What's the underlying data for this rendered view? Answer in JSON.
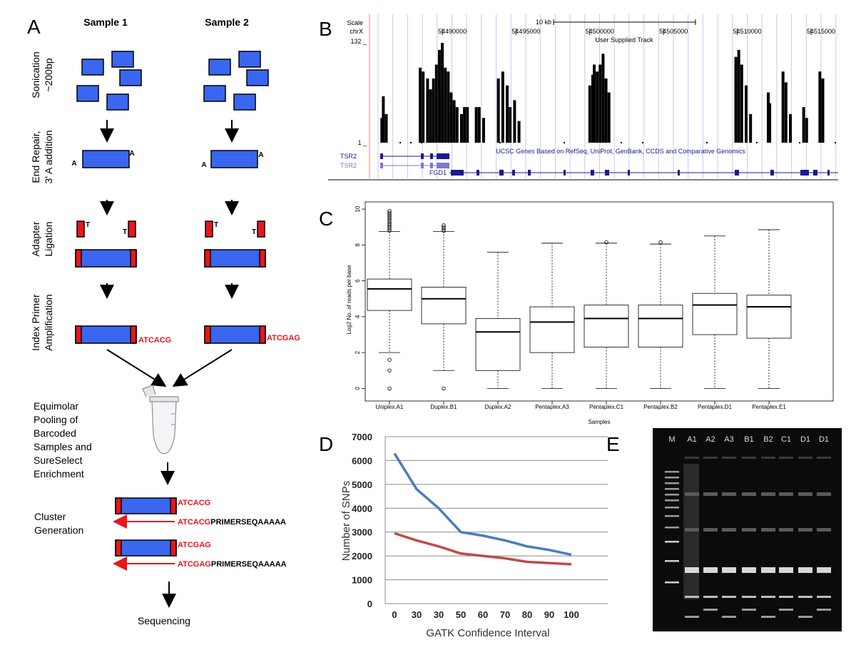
{
  "panel_a": {
    "label": "A",
    "samples": [
      "Sample 1",
      "Sample 2"
    ],
    "steps": [
      [
        "Sonication",
        "~200bp"
      ],
      [
        "End Repair,",
        "3' A addition"
      ],
      [
        "Adapter",
        "Ligation"
      ],
      [
        "Index Primer",
        "Amplification"
      ]
    ],
    "a_overhang": "A",
    "t_overhang": "T",
    "barcodes": [
      "ATCACG",
      "ATCGAG"
    ],
    "pooling": [
      "Equimolar",
      "Pooling of",
      "Barcoded",
      "Samples and",
      "SureSelect",
      "Enrichment"
    ],
    "cluster": [
      "Cluster",
      "Generation"
    ],
    "primer_suffix": "PRIMERSEQAAAAA",
    "final": "Sequencing"
  },
  "chart_data": [
    {
      "type": "coverage",
      "panel_label": "B",
      "scale_label": "Scale",
      "scale_bar": "10 kb",
      "chromosome": "chrX",
      "track_name": "User Supplied Track",
      "genes_track": "UCSC Genes Based on RefSeq, UniProt, GenBank, CCDS and Comparative Genomics",
      "genes": [
        "TSR2",
        "TSR2",
        "FGD1"
      ],
      "color": "#000000",
      "xlim": [
        54485160,
        54516840
      ],
      "xticks": [
        54490000,
        54495000,
        54500000,
        54505000,
        54510000,
        54515000
      ],
      "ylim": [
        1,
        132
      ],
      "yticks": [
        {
          "value": 132,
          "label": "132 _"
        },
        {
          "value": 1,
          "label": "1 _"
        }
      ],
      "x": [
        54485900,
        54486000,
        54486200,
        54488500,
        54488700,
        54489000,
        54489200,
        54489400,
        54489600,
        54489800,
        54490000,
        54490200,
        54490400,
        54490600,
        54490800,
        54491000,
        54491300,
        54491500,
        54491700,
        54492300,
        54492500,
        54492800,
        54493800,
        54494100,
        54494400,
        54494600,
        54494900,
        54495200,
        54500000,
        54500200,
        54500300,
        54500500,
        54500700,
        54500900,
        54501100,
        54501300,
        54509900,
        54510100,
        54510300,
        54510600,
        54510900,
        54512100,
        54512200,
        54513100,
        54513300,
        54513600,
        54514500,
        54514700,
        54515600,
        54515800
      ],
      "values": [
        33,
        61,
        38,
        98,
        93,
        84,
        70,
        84,
        102,
        121,
        130,
        98,
        93,
        66,
        56,
        47,
        38,
        47,
        47,
        47,
        47,
        33,
        84,
        93,
        75,
        47,
        56,
        29,
        75,
        89,
        102,
        93,
        102,
        116,
        84,
        66,
        112,
        121,
        102,
        75,
        38,
        66,
        52,
        93,
        79,
        38,
        47,
        33,
        93,
        84
      ]
    },
    {
      "type": "boxplot",
      "panel_label": "C",
      "y_label": "Log2 No. of reads per base",
      "x_label": "Samples",
      "categories": [
        "Uniplex.A1",
        "Duplex.B1",
        "Duplex.A2",
        "Pentaplex.A3",
        "Pentaplex.C1",
        "Pentaplex.B2",
        "Pentaplex.D1",
        "Pentaplex.E1"
      ],
      "whisker_low": [
        2.0,
        1.0,
        0,
        0,
        0,
        0,
        0,
        0
      ],
      "q1": [
        4.35,
        3.6,
        1.0,
        2.0,
        2.3,
        2.3,
        3.0,
        2.8
      ],
      "median": [
        5.55,
        5.0,
        3.15,
        3.7,
        3.9,
        3.9,
        4.65,
        4.55
      ],
      "q3": [
        6.1,
        5.65,
        3.9,
        4.55,
        4.65,
        4.65,
        5.3,
        5.2
      ],
      "whisker_high": [
        8.75,
        8.75,
        7.6,
        8.1,
        8.1,
        8.05,
        8.5,
        8.85
      ],
      "outliers": [
        [
          8.8,
          8.9,
          9.0,
          9.1,
          9.2,
          9.3,
          9.4,
          9.5,
          9.6,
          9.7,
          9.8,
          9.9,
          1.6,
          1.0,
          0
        ],
        [
          8.8,
          8.9,
          9.0,
          9.1,
          0
        ],
        [],
        [],
        [
          8.15
        ],
        [
          8.15
        ],
        [],
        []
      ],
      "ylim": [
        -0.7,
        10.4
      ],
      "yticks": [
        0,
        2,
        4,
        6,
        8,
        10
      ]
    },
    {
      "type": "line",
      "panel_label": "D",
      "y_label": "Number of SNPs",
      "x_label": "GATK Confidence Interval",
      "categories": [
        "0",
        "30",
        "30",
        "50",
        "60",
        "70",
        "80",
        "90",
        "100"
      ],
      "series": [
        {
          "color": "#4a7ebb",
          "values": [
            6300,
            4800,
            4000,
            3000,
            2850,
            2650,
            2400,
            2250,
            2050
          ]
        },
        {
          "color": "#be4b48",
          "values": [
            2950,
            2650,
            2400,
            2100,
            2000,
            1900,
            1750,
            1700,
            1650
          ]
        }
      ],
      "ylim": [
        0,
        7000
      ],
      "yticks": [
        0,
        1000,
        2000,
        3000,
        4000,
        5000,
        6000,
        7000
      ],
      "grid": true
    }
  ],
  "panel_e": {
    "label": "E",
    "lanes": [
      "M",
      "A1",
      "A2",
      "A3",
      "B1",
      "B2",
      "C1",
      "D1",
      "D1"
    ]
  }
}
